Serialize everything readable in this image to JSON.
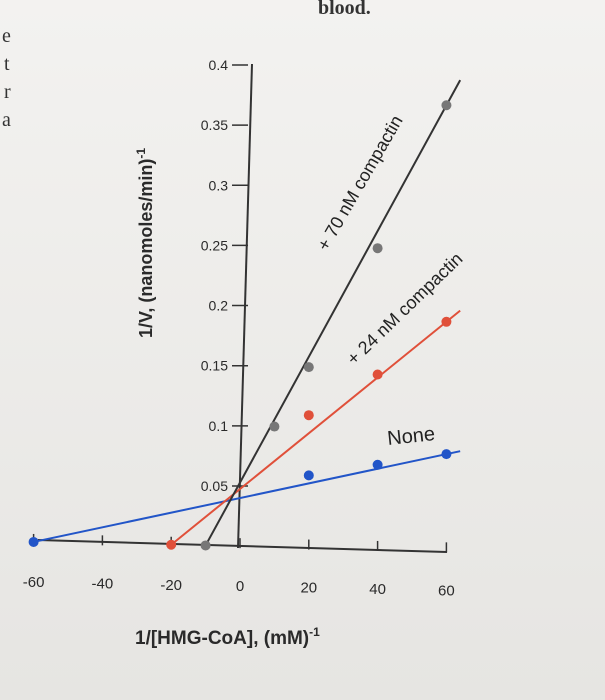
{
  "page_fragments": {
    "top_caption": "blood.",
    "left_chars": [
      "e",
      "t",
      "r",
      "a"
    ]
  },
  "chart_data": {
    "type": "line",
    "x": [
      -60,
      0,
      60
    ],
    "xlabel": "1/[HMG-CoA], (mM)",
    "xlabel_sup": "-1",
    "ylabel": "1/V, (nanomoles/min)",
    "ylabel_sup": "-1",
    "xlim": [
      -60,
      60
    ],
    "ylim": [
      0,
      0.4
    ],
    "x_ticks": [
      "-60",
      "-40",
      "-20",
      "0",
      "20",
      "40",
      "60"
    ],
    "y_ticks": [
      "0.05",
      "0.1",
      "0.15",
      "0.2",
      "0.25",
      "0.3",
      "0.35",
      "0.4"
    ],
    "series": [
      {
        "name": "None",
        "color": "#2255c8",
        "points": [
          [
            -60,
            0
          ],
          [
            20,
            0.06
          ],
          [
            40,
            0.07
          ],
          [
            60,
            0.08
          ]
        ]
      },
      {
        "name": "+ 24 nM compactin",
        "color": "#e0503a",
        "points": [
          [
            -20,
            0
          ],
          [
            20,
            0.11
          ],
          [
            40,
            0.145
          ],
          [
            60,
            0.19
          ]
        ]
      },
      {
        "name": "+ 70 nM compactin",
        "color": "#777777",
        "points": [
          [
            -10,
            0
          ],
          [
            10,
            0.1
          ],
          [
            20,
            0.15
          ],
          [
            40,
            0.25
          ],
          [
            60,
            0.37
          ]
        ]
      }
    ]
  }
}
